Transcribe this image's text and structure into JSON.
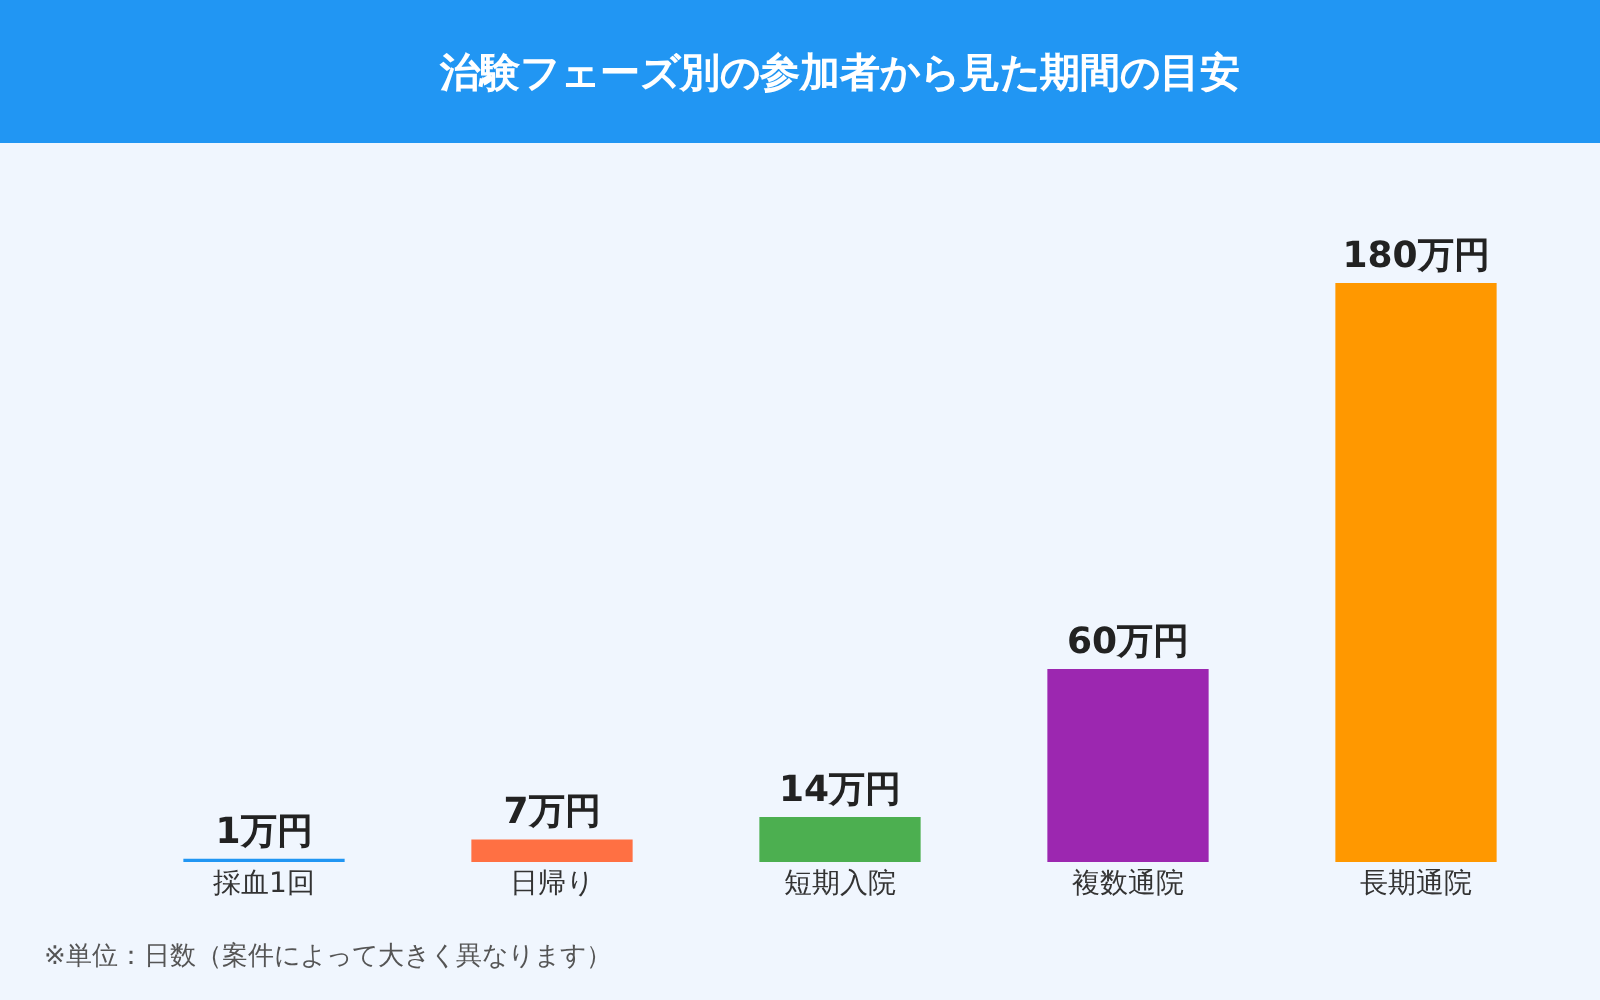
{
  "chart_data": {
    "type": "bar",
    "title": "治験フェーズ別の参加者から見た期間の目安",
    "categories": [
      "採血1回",
      "日帰り",
      "短期入院",
      "複数通院",
      "長期通院"
    ],
    "values": [
      1,
      7,
      14,
      60,
      180
    ],
    "colors": [
      "#2196f3",
      "#ff7043",
      "#4caf50",
      "#9c27b0",
      "#ff9800"
    ],
    "value_labels": [
      "1万円",
      "7万円",
      "14万円",
      "60万円",
      "180万円"
    ],
    "annotations": [
      "※単位：日数（案件によって大きく異なります）"
    ],
    "grid": false
  }
}
